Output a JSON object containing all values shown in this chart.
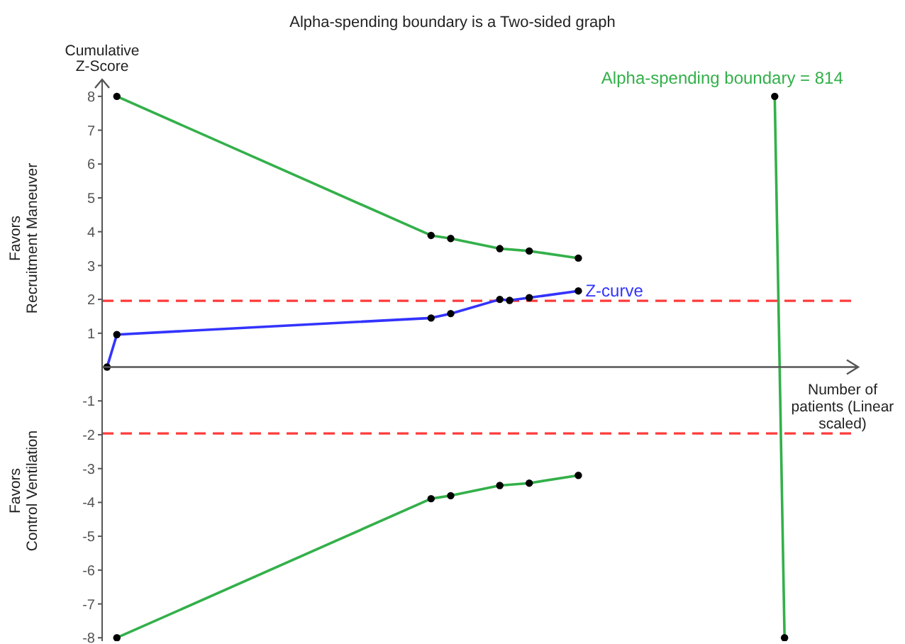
{
  "chart_data": {
    "type": "line",
    "title": "Alpha-spending boundary is a Two-sided graph",
    "xlabel": "Number of patients (Linear scaled)",
    "ylabel": "Cumulative Z-Score",
    "annotations": [
      "Favors Recruitment Maneuver",
      "Favors Control Ventilation"
    ],
    "categories": [
      null,
      null,
      null,
      null,
      null,
      null,
      null,
      null,
      null,
      null,
      null,
      null,
      null,
      null,
      null,
      null,
      null,
      null,
      null,
      null,
      null,
      null,
      null,
      null,
      null,
      null,
      null,
      null,
      null,
      null,
      null,
      null,
      null,
      null,
      null,
      null,
      null,
      null,
      null,
      null,
      null,
      null,
      null,
      null,
      null,
      null,
      null,
      null,
      null,
      null,
      null,
      null,
      null,
      null,
      null,
      null,
      null,
      null,
      null,
      null,
      null,
      null,
      null,
      null,
      null,
      null,
      null,
      null,
      null,
      null,
      null,
      null,
      null,
      null,
      null,
      null,
      null
    ],
    "ylim": [
      -8.1,
      8.5
    ],
    "yticks": [
      -8,
      -7,
      -6,
      -5,
      -4,
      -3,
      -2,
      -1,
      1,
      2,
      3,
      4,
      5,
      6,
      7,
      8
    ],
    "tick_labels": "y",
    "marker": "circle",
    "line_style": "solid",
    "ref_lines": [
      {
        "axis": "y",
        "value": 1.96,
        "color": "#ff3b3b",
        "line_style": "dashed"
      },
      {
        "axis": "y",
        "value": -1.96,
        "color": "#ff3b3b",
        "line_style": "dashed"
      }
    ],
    "series": [
      {
        "color": "#33b04a",
        "values": [
          null,
          8,
          null,
          null,
          null,
          null,
          null,
          null,
          null,
          null,
          null,
          null,
          null,
          null,
          null,
          null,
          null,
          null,
          null,
          null,
          null,
          null,
          null,
          null,
          null,
          null,
          null,
          null,
          null,
          null,
          null,
          null,
          null,
          3.89,
          null,
          3.8,
          null,
          null,
          null,
          null,
          3.5,
          null,
          null,
          3.43,
          null,
          null,
          null,
          null,
          3.22,
          null,
          null,
          null,
          null,
          null,
          null,
          null,
          null,
          null,
          null,
          null,
          null,
          null,
          null,
          null,
          null,
          null,
          null,
          null,
          null,
          null,
          null,
          null,
          null,
          null,
          null,
          null,
          null
        ]
      },
      {
        "color": "#33b04a",
        "values": [
          null,
          -8,
          null,
          null,
          null,
          null,
          null,
          null,
          null,
          null,
          null,
          null,
          null,
          null,
          null,
          null,
          null,
          null,
          null,
          null,
          null,
          null,
          null,
          null,
          null,
          null,
          null,
          null,
          null,
          null,
          null,
          null,
          null,
          -3.89,
          null,
          -3.8,
          null,
          null,
          null,
          null,
          -3.5,
          null,
          null,
          -3.43,
          null,
          null,
          null,
          null,
          -3.2,
          null,
          null,
          null,
          null,
          null,
          null,
          null,
          null,
          null,
          null,
          null,
          null,
          null,
          null,
          null,
          null,
          null,
          null,
          null,
          null,
          null,
          null,
          null,
          null,
          null,
          null,
          null,
          null
        ]
      },
      {
        "name": "Z-curve",
        "color": "#3333ff",
        "values": [
          0,
          0.96,
          null,
          null,
          null,
          null,
          null,
          null,
          null,
          null,
          null,
          null,
          null,
          null,
          null,
          null,
          null,
          null,
          null,
          null,
          null,
          null,
          null,
          null,
          null,
          null,
          null,
          null,
          null,
          null,
          null,
          null,
          null,
          1.45,
          null,
          1.58,
          null,
          null,
          null,
          null,
          2.0,
          1.97,
          null,
          2.05,
          null,
          null,
          null,
          null,
          2.25,
          null,
          null,
          null,
          null,
          null,
          null,
          null,
          null,
          null,
          null,
          null,
          null,
          null,
          null,
          null,
          null,
          null,
          null,
          null,
          null,
          null,
          null,
          null,
          null,
          null,
          null,
          null,
          null
        ]
      },
      {
        "name": "Alpha-spending boundary = 814",
        "color": "#33b04a",
        "values": [
          null,
          null,
          null,
          null,
          null,
          null,
          null,
          null,
          null,
          null,
          null,
          null,
          null,
          null,
          null,
          null,
          null,
          null,
          null,
          null,
          null,
          null,
          null,
          null,
          null,
          null,
          null,
          null,
          null,
          null,
          null,
          null,
          null,
          null,
          null,
          null,
          null,
          null,
          null,
          null,
          null,
          null,
          null,
          null,
          null,
          null,
          null,
          null,
          null,
          null,
          null,
          null,
          null,
          null,
          null,
          null,
          null,
          null,
          null,
          null,
          null,
          null,
          null,
          null,
          null,
          null,
          null,
          null,
          8,
          -8,
          null,
          null,
          null,
          null,
          null,
          null,
          null
        ]
      }
    ]
  }
}
